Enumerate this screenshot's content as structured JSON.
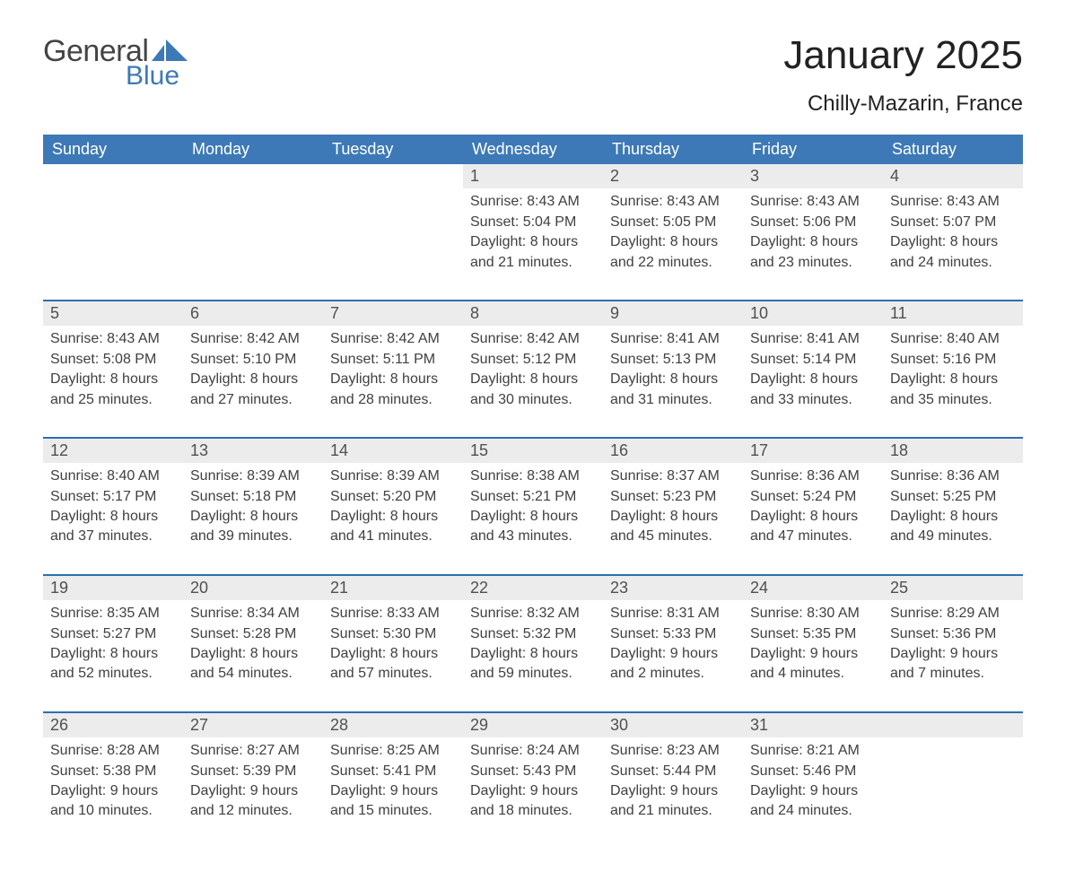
{
  "logo": {
    "word1": "General",
    "word2": "Blue",
    "icon_color": "#3d79b6",
    "text_color": "#444444"
  },
  "title": "January 2025",
  "location": "Chilly-Mazarin, France",
  "colors": {
    "header_blue": "#3d79b6",
    "accent_blue": "#2e6fb2",
    "row_gray": "#ececec",
    "background": "#ffffff",
    "text_dark": "#333333"
  },
  "typography": {
    "title_fontsize_pt": 33,
    "location_fontsize_pt": 18,
    "weekday_fontsize_pt": 14,
    "daynum_fontsize_pt": 14,
    "detail_fontsize_pt": 12,
    "font_family": "Arial"
  },
  "labels": {
    "sunrise": "Sunrise",
    "sunset": "Sunset",
    "daylight": "Daylight"
  },
  "weekdays": [
    "Sunday",
    "Monday",
    "Tuesday",
    "Wednesday",
    "Thursday",
    "Friday",
    "Saturday"
  ],
  "weeks": [
    [
      null,
      null,
      null,
      {
        "day": 1,
        "sunrise": "8:43 AM",
        "sunset": "5:04 PM",
        "daylight": "8 hours and 21 minutes."
      },
      {
        "day": 2,
        "sunrise": "8:43 AM",
        "sunset": "5:05 PM",
        "daylight": "8 hours and 22 minutes."
      },
      {
        "day": 3,
        "sunrise": "8:43 AM",
        "sunset": "5:06 PM",
        "daylight": "8 hours and 23 minutes."
      },
      {
        "day": 4,
        "sunrise": "8:43 AM",
        "sunset": "5:07 PM",
        "daylight": "8 hours and 24 minutes."
      }
    ],
    [
      {
        "day": 5,
        "sunrise": "8:43 AM",
        "sunset": "5:08 PM",
        "daylight": "8 hours and 25 minutes."
      },
      {
        "day": 6,
        "sunrise": "8:42 AM",
        "sunset": "5:10 PM",
        "daylight": "8 hours and 27 minutes."
      },
      {
        "day": 7,
        "sunrise": "8:42 AM",
        "sunset": "5:11 PM",
        "daylight": "8 hours and 28 minutes."
      },
      {
        "day": 8,
        "sunrise": "8:42 AM",
        "sunset": "5:12 PM",
        "daylight": "8 hours and 30 minutes."
      },
      {
        "day": 9,
        "sunrise": "8:41 AM",
        "sunset": "5:13 PM",
        "daylight": "8 hours and 31 minutes."
      },
      {
        "day": 10,
        "sunrise": "8:41 AM",
        "sunset": "5:14 PM",
        "daylight": "8 hours and 33 minutes."
      },
      {
        "day": 11,
        "sunrise": "8:40 AM",
        "sunset": "5:16 PM",
        "daylight": "8 hours and 35 minutes."
      }
    ],
    [
      {
        "day": 12,
        "sunrise": "8:40 AM",
        "sunset": "5:17 PM",
        "daylight": "8 hours and 37 minutes."
      },
      {
        "day": 13,
        "sunrise": "8:39 AM",
        "sunset": "5:18 PM",
        "daylight": "8 hours and 39 minutes."
      },
      {
        "day": 14,
        "sunrise": "8:39 AM",
        "sunset": "5:20 PM",
        "daylight": "8 hours and 41 minutes."
      },
      {
        "day": 15,
        "sunrise": "8:38 AM",
        "sunset": "5:21 PM",
        "daylight": "8 hours and 43 minutes."
      },
      {
        "day": 16,
        "sunrise": "8:37 AM",
        "sunset": "5:23 PM",
        "daylight": "8 hours and 45 minutes."
      },
      {
        "day": 17,
        "sunrise": "8:36 AM",
        "sunset": "5:24 PM",
        "daylight": "8 hours and 47 minutes."
      },
      {
        "day": 18,
        "sunrise": "8:36 AM",
        "sunset": "5:25 PM",
        "daylight": "8 hours and 49 minutes."
      }
    ],
    [
      {
        "day": 19,
        "sunrise": "8:35 AM",
        "sunset": "5:27 PM",
        "daylight": "8 hours and 52 minutes."
      },
      {
        "day": 20,
        "sunrise": "8:34 AM",
        "sunset": "5:28 PM",
        "daylight": "8 hours and 54 minutes."
      },
      {
        "day": 21,
        "sunrise": "8:33 AM",
        "sunset": "5:30 PM",
        "daylight": "8 hours and 57 minutes."
      },
      {
        "day": 22,
        "sunrise": "8:32 AM",
        "sunset": "5:32 PM",
        "daylight": "8 hours and 59 minutes."
      },
      {
        "day": 23,
        "sunrise": "8:31 AM",
        "sunset": "5:33 PM",
        "daylight": "9 hours and 2 minutes."
      },
      {
        "day": 24,
        "sunrise": "8:30 AM",
        "sunset": "5:35 PM",
        "daylight": "9 hours and 4 minutes."
      },
      {
        "day": 25,
        "sunrise": "8:29 AM",
        "sunset": "5:36 PM",
        "daylight": "9 hours and 7 minutes."
      }
    ],
    [
      {
        "day": 26,
        "sunrise": "8:28 AM",
        "sunset": "5:38 PM",
        "daylight": "9 hours and 10 minutes."
      },
      {
        "day": 27,
        "sunrise": "8:27 AM",
        "sunset": "5:39 PM",
        "daylight": "9 hours and 12 minutes."
      },
      {
        "day": 28,
        "sunrise": "8:25 AM",
        "sunset": "5:41 PM",
        "daylight": "9 hours and 15 minutes."
      },
      {
        "day": 29,
        "sunrise": "8:24 AM",
        "sunset": "5:43 PM",
        "daylight": "9 hours and 18 minutes."
      },
      {
        "day": 30,
        "sunrise": "8:23 AM",
        "sunset": "5:44 PM",
        "daylight": "9 hours and 21 minutes."
      },
      {
        "day": 31,
        "sunrise": "8:21 AM",
        "sunset": "5:46 PM",
        "daylight": "9 hours and 24 minutes."
      },
      null
    ]
  ]
}
